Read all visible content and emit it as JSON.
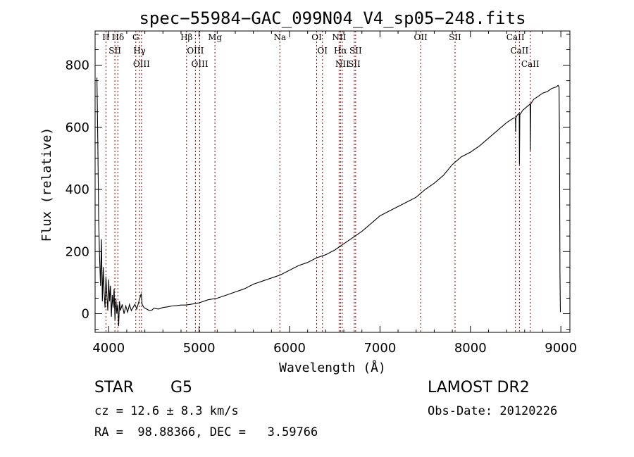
{
  "chart_data": {
    "type": "line",
    "title": "spec−55984−GAC_099N04_V4_sp05−248.fits",
    "xlabel": "Wavelength (Å)",
    "ylabel": "Flux (relative)",
    "xlim": [
      3850,
      9100
    ],
    "ylim": [
      -60,
      910
    ],
    "xticks": [
      4000,
      5000,
      6000,
      7000,
      8000,
      9000
    ],
    "yticks": [
      0,
      200,
      400,
      600,
      800
    ],
    "grid": false,
    "series": [
      {
        "values": [
          [
            3870,
            760
          ],
          [
            3880,
            540
          ],
          [
            3890,
            300
          ],
          [
            3900,
            180
          ],
          [
            3910,
            90
          ],
          [
            3920,
            240
          ],
          [
            3930,
            40
          ],
          [
            3940,
            150
          ],
          [
            3950,
            70
          ],
          [
            3960,
            20
          ],
          [
            3970,
            120
          ],
          [
            3980,
            60
          ],
          [
            3990,
            10
          ],
          [
            4000,
            110
          ],
          [
            4010,
            40
          ],
          [
            4020,
            90
          ],
          [
            4030,
            -10
          ],
          [
            4040,
            60
          ],
          [
            4050,
            20
          ],
          [
            4060,
            80
          ],
          [
            4070,
            -20
          ],
          [
            4080,
            50
          ],
          [
            4090,
            0
          ],
          [
            4100,
            30
          ],
          [
            4110,
            -40
          ],
          [
            4120,
            40
          ],
          [
            4130,
            10
          ],
          [
            4150,
            30
          ],
          [
            4170,
            0
          ],
          [
            4190,
            25
          ],
          [
            4210,
            5
          ],
          [
            4230,
            30
          ],
          [
            4250,
            10
          ],
          [
            4270,
            20
          ],
          [
            4290,
            30
          ],
          [
            4310,
            15
          ],
          [
            4330,
            35
          ],
          [
            4350,
            55
          ],
          [
            4360,
            65
          ],
          [
            4370,
            30
          ],
          [
            4390,
            20
          ],
          [
            4420,
            15
          ],
          [
            4450,
            10
          ],
          [
            4480,
            12
          ],
          [
            4500,
            18
          ],
          [
            4550,
            15
          ],
          [
            4600,
            20
          ],
          [
            4650,
            22
          ],
          [
            4700,
            25
          ],
          [
            4750,
            26
          ],
          [
            4800,
            28
          ],
          [
            4850,
            28
          ],
          [
            4900,
            30
          ],
          [
            5000,
            35
          ],
          [
            5100,
            45
          ],
          [
            5200,
            50
          ],
          [
            5300,
            60
          ],
          [
            5400,
            70
          ],
          [
            5500,
            80
          ],
          [
            5600,
            95
          ],
          [
            5700,
            105
          ],
          [
            5800,
            115
          ],
          [
            5900,
            125
          ],
          [
            6000,
            140
          ],
          [
            6100,
            155
          ],
          [
            6200,
            165
          ],
          [
            6300,
            180
          ],
          [
            6400,
            190
          ],
          [
            6500,
            205
          ],
          [
            6600,
            225
          ],
          [
            6700,
            245
          ],
          [
            6800,
            265
          ],
          [
            6900,
            290
          ],
          [
            7000,
            315
          ],
          [
            7100,
            330
          ],
          [
            7200,
            345
          ],
          [
            7300,
            360
          ],
          [
            7400,
            375
          ],
          [
            7500,
            400
          ],
          [
            7600,
            420
          ],
          [
            7700,
            445
          ],
          [
            7800,
            480
          ],
          [
            7900,
            505
          ],
          [
            8000,
            520
          ],
          [
            8100,
            540
          ],
          [
            8200,
            565
          ],
          [
            8300,
            590
          ],
          [
            8400,
            615
          ],
          [
            8450,
            625
          ],
          [
            8480,
            630
          ],
          [
            8498,
            630
          ],
          [
            8500,
            585
          ],
          [
            8502,
            630
          ],
          [
            8520,
            640
          ],
          [
            8540,
            645
          ],
          [
            8542,
            480
          ],
          [
            8546,
            640
          ],
          [
            8580,
            655
          ],
          [
            8620,
            665
          ],
          [
            8660,
            675
          ],
          [
            8662,
            525
          ],
          [
            8666,
            675
          ],
          [
            8700,
            690
          ],
          [
            8750,
            700
          ],
          [
            8800,
            710
          ],
          [
            8850,
            715
          ],
          [
            8900,
            725
          ],
          [
            8950,
            730
          ],
          [
            8970,
            735
          ],
          [
            8980,
            730
          ],
          [
            8985,
            580
          ],
          [
            8990,
            130
          ],
          [
            8995,
            5
          ]
        ]
      }
    ],
    "lines": [
      {
        "wl": 3970,
        "label": "H"
      },
      {
        "wl": 4069,
        "label": "SII"
      },
      {
        "wl": 4102,
        "label": "Hδ"
      },
      {
        "wl": 4300,
        "label": "G"
      },
      {
        "wl": 4341,
        "label": "Hγ"
      },
      {
        "wl": 4363,
        "label": "OIII"
      },
      {
        "wl": 4861,
        "label": "Hβ"
      },
      {
        "wl": 4959,
        "label": "OIII"
      },
      {
        "wl": 5007,
        "label": "OIII"
      },
      {
        "wl": 5175,
        "label": "Mg"
      },
      {
        "wl": 5893,
        "label": "Na"
      },
      {
        "wl": 6300,
        "label": "OI"
      },
      {
        "wl": 6364,
        "label": "OI"
      },
      {
        "wl": 6548,
        "label": "NII"
      },
      {
        "wl": 6563,
        "label": "Hα"
      },
      {
        "wl": 6583,
        "label": "NII"
      },
      {
        "wl": 6716,
        "label": "SII"
      },
      {
        "wl": 6731,
        "label": "SII"
      },
      {
        "wl": 7450,
        "label": "OII"
      },
      {
        "wl": 7830,
        "label": "SII"
      },
      {
        "wl": 8498,
        "label": "CaII"
      },
      {
        "wl": 8542,
        "label": "CaII"
      },
      {
        "wl": 8662,
        "label": "CaII"
      }
    ]
  },
  "info": {
    "class": "STAR",
    "subclass": "G5",
    "survey": "LAMOST DR2",
    "cz": "cz = 12.6 ± 8.3 km/s",
    "obs_date": "Obs-Date: 20120226",
    "radec": "RA =  98.88366, DEC =   3.59766"
  }
}
